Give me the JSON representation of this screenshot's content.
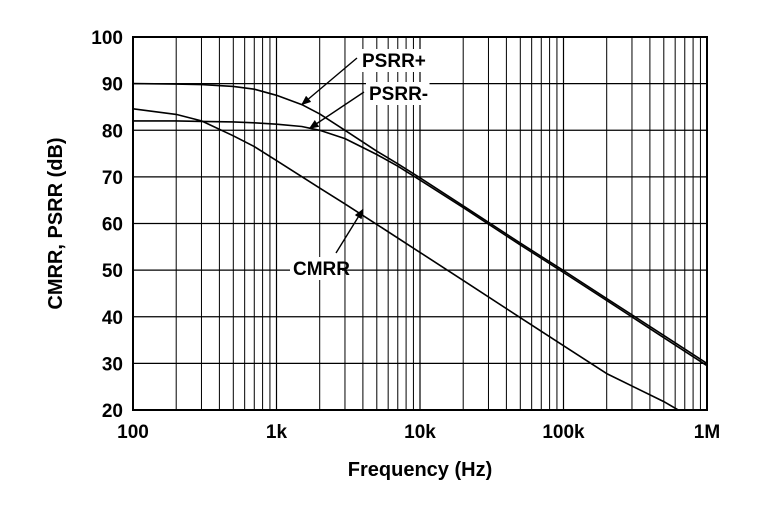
{
  "chart_data": {
    "type": "line",
    "title": "",
    "xlabel": "Frequency (Hz)",
    "ylabel": "CMRR, PSRR (dB)",
    "x_scale": "log",
    "xlim": [
      100,
      1000000
    ],
    "ylim": [
      20,
      100
    ],
    "grid": true,
    "x_tick_labels": [
      "100",
      "1k",
      "10k",
      "100k",
      "1M"
    ],
    "x_tick_values": [
      100,
      1000,
      10000,
      100000,
      1000000
    ],
    "y_tick_values": [
      20,
      30,
      40,
      50,
      60,
      70,
      80,
      90,
      100
    ],
    "y_tick_labels": [
      "20",
      "30",
      "40",
      "50",
      "60",
      "70",
      "80",
      "90",
      "100"
    ],
    "series": [
      {
        "name": "PSRR+",
        "x": [
          100,
          200,
          300,
          500,
          700,
          1000,
          1500,
          2000,
          3000,
          5000,
          7000,
          10000,
          20000,
          50000,
          100000,
          200000,
          500000,
          1000000
        ],
        "y": [
          90,
          89.9,
          89.8,
          89.4,
          88.8,
          87.5,
          85.5,
          83.5,
          80,
          75.5,
          72.8,
          69.8,
          63.8,
          55.8,
          49.9,
          43.9,
          36,
          30
        ]
      },
      {
        "name": "PSRR-",
        "x": [
          100,
          200,
          300,
          500,
          700,
          1000,
          1500,
          2000,
          3000,
          5000,
          7000,
          10000,
          20000,
          50000,
          100000,
          200000,
          500000,
          1000000
        ],
        "y": [
          82,
          82,
          81.9,
          81.8,
          81.6,
          81.3,
          80.8,
          80,
          78.2,
          74.8,
          72.3,
          69.3,
          63.4,
          55.4,
          49.5,
          43.5,
          35.5,
          29.5
        ]
      },
      {
        "name": "CMRR",
        "x": [
          100,
          200,
          300,
          500,
          700,
          1000,
          2000,
          3000,
          5000,
          10000,
          20000,
          50000,
          100000,
          200000,
          500000,
          630000
        ],
        "y": [
          84.6,
          83.4,
          82,
          78.8,
          76.5,
          73.5,
          67.6,
          64.2,
          59.8,
          53.8,
          47.8,
          39.8,
          33.8,
          27.8,
          21.8,
          20
        ]
      }
    ],
    "annotations": [
      {
        "text": "PSRR+",
        "series": "PSRR+",
        "at_x": 1500,
        "at_y": 85.5
      },
      {
        "text": "PSRR-",
        "series": "PSRR-",
        "at_x": 1700,
        "at_y": 80.4
      },
      {
        "text": "CMRR",
        "series": "CMRR",
        "at_x": 4000,
        "at_y": 63
      }
    ]
  }
}
